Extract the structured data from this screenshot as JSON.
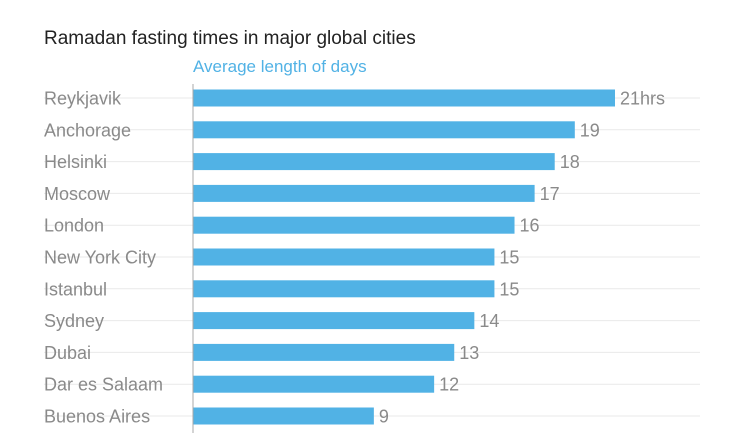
{
  "title": "Ramadan fasting times in major global cities",
  "subtitle": "Average length of days",
  "colors": {
    "bar": "#51b2e5",
    "subtitle": "#51b2e5",
    "axis": "#a8a8a8",
    "grid": "#e9e9e9"
  },
  "chart_data": {
    "type": "bar",
    "orientation": "horizontal",
    "categories": [
      "Reykjavik",
      "Anchorage",
      "Helsinki",
      "Moscow",
      "London",
      "New York City",
      "Istanbul",
      "Sydney",
      "Dubai",
      "Dar es Salaam",
      "Buenos Aires"
    ],
    "values": [
      21,
      19,
      18,
      17,
      16,
      15,
      15,
      14,
      13,
      12,
      9
    ],
    "data_labels": [
      "21hrs",
      "19",
      "18",
      "17",
      "16",
      "15",
      "15",
      "14",
      "13",
      "12",
      "9"
    ],
    "xlim": [
      0,
      21
    ],
    "grid": true
  }
}
